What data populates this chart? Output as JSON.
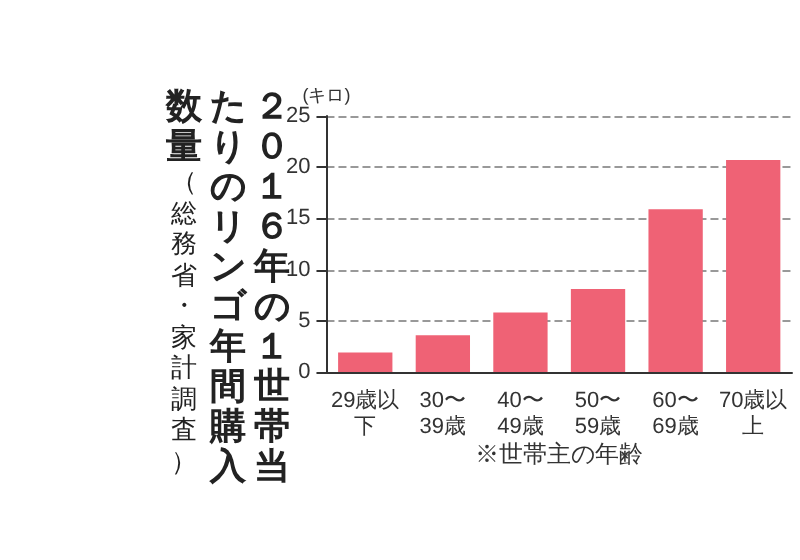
{
  "chart_data": {
    "type": "bar",
    "title": "２０１６年の１世帯当たりのリンゴ年間購入数量",
    "subtitle": "（総務省・家計調査）",
    "ylabel": "(キロ)",
    "xlabel": "※世帯主の年齢",
    "categories": [
      "29歳以下",
      "30〜39歳",
      "40〜49歳",
      "50〜59歳",
      "60〜69歳",
      "70歳以上"
    ],
    "values": [
      1.9,
      3.6,
      5.8,
      8.1,
      15.9,
      20.7
    ],
    "color": "#ef6275",
    "ylim": [
      0,
      25
    ],
    "yticks": [
      0,
      5,
      10,
      15,
      20,
      25
    ],
    "grid": "y"
  }
}
